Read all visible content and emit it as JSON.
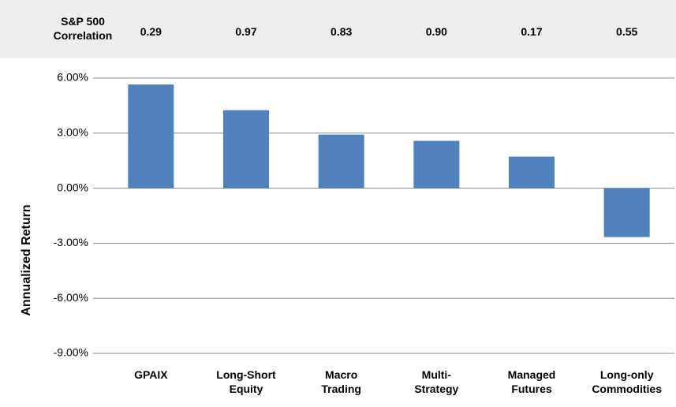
{
  "chart_data": {
    "type": "bar",
    "correlation": {
      "label": "S&P 500\nCorrelation",
      "values": [
        "0.29",
        "0.97",
        "0.83",
        "0.90",
        "0.17",
        "0.55"
      ]
    },
    "y_label": "Annualized Return",
    "categories": [
      "GPAIX",
      "Long-Short\nEquity",
      "Macro\nTrading",
      "Multi-\nStrategy",
      "Managed\nFutures",
      "Long-only\nCommodities"
    ],
    "values": [
      5.65,
      4.25,
      2.92,
      2.58,
      1.72,
      -2.66
    ],
    "color": "#4f81bd",
    "ylim": [
      -9,
      6
    ],
    "yticks": [
      {
        "value": -9,
        "label": "-9.00%"
      },
      {
        "value": -6,
        "label": "-6.00%"
      },
      {
        "value": -3,
        "label": "-3.00%"
      },
      {
        "value": 0,
        "label": "0.00%"
      },
      {
        "value": 3,
        "label": "3.00%"
      },
      {
        "value": 6,
        "label": "6.00%"
      }
    ],
    "grid": true
  }
}
